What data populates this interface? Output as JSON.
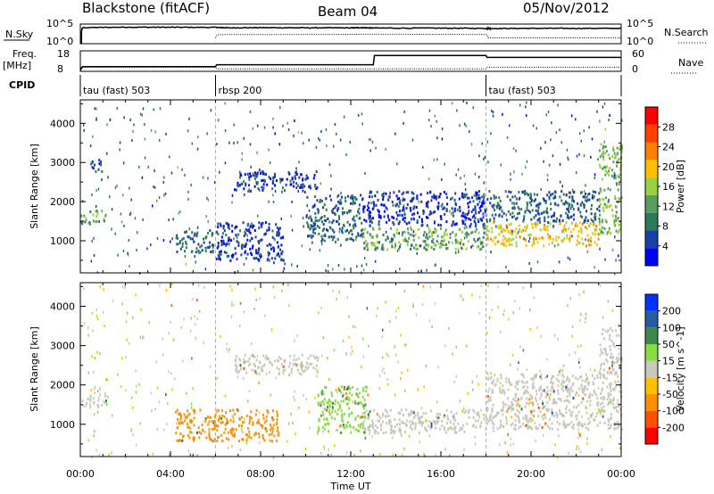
{
  "header": {
    "station": "Blackstone (fitACF)",
    "beam": "Beam 04",
    "date": "05/Nov/2012"
  },
  "side_labels": {
    "nsky": "N.Sky",
    "nsky_top": "10^5",
    "nsky_bottom": "10^0",
    "freq_line1": "Freq.",
    "freq_line2": "[MHz]",
    "freq_top": "18",
    "freq_bottom": "8",
    "cpid": "CPID",
    "nsearch": "N.Search",
    "nsearch_top": "10^5",
    "nsearch_bottom": "10^0",
    "nave": "Nave",
    "nave_top": "60",
    "nave_bottom": "0"
  },
  "colors": {
    "power": [
      "#0000ff",
      "#1b3fa8",
      "#2b7a5a",
      "#55a060",
      "#9dd040",
      "#ffc000",
      "#ff8000",
      "#ff4000",
      "#ff0000"
    ],
    "velocity": [
      "#0033ff",
      "#2a5aa0",
      "#3c8a4a",
      "#88dd44",
      "#c8c8c0",
      "#ffc000",
      "#ff9000",
      "#ff5000",
      "#ff0000"
    ]
  },
  "chart_data": [
    {
      "type": "line",
      "name": "N.Sky / N.Search",
      "xlim": [
        0,
        24
      ],
      "y_scale": "log",
      "ylim": [
        1,
        100000
      ],
      "series": [
        {
          "name": "N.Sky",
          "style": "solid",
          "x": [
            0.05,
            0.1,
            2,
            4,
            6,
            6.5,
            8,
            10,
            12,
            12.5,
            13,
            16,
            18,
            18.2,
            20,
            22,
            24
          ],
          "y": [
            1,
            12000,
            16000,
            15000,
            14000,
            11000,
            12000,
            11000,
            10500,
            12000,
            9500,
            9000,
            8000,
            7500,
            8000,
            8000,
            8000
          ]
        },
        {
          "name": "N.Search",
          "style": "dotted",
          "x": [
            6,
            6.1,
            8,
            10,
            12,
            13,
            16,
            18,
            18.1,
            20,
            24
          ],
          "y": [
            30,
            200,
            220,
            230,
            240,
            260,
            240,
            230,
            30,
            30,
            30
          ]
        }
      ]
    },
    {
      "type": "line",
      "name": "Freq / Nave",
      "xlim": [
        0,
        24
      ],
      "y_left": {
        "label": "Freq. [MHz]",
        "ticks": [
          8,
          18
        ]
      },
      "y_right": {
        "label": "Nave",
        "ticks": [
          0,
          60
        ]
      },
      "series": [
        {
          "name": "Freq.",
          "style": "solid",
          "x": [
            0,
            0.1,
            6,
            6.05,
            13,
            13.05,
            18,
            18.05,
            24
          ],
          "y": [
            8.5,
            10.3,
            10.3,
            11.2,
            11.2,
            15.7,
            15.7,
            14.8,
            14.8
          ]
        },
        {
          "name": "Nave",
          "style": "dotted",
          "x": [
            0,
            6,
            6.05,
            13,
            13.05,
            18,
            18.05,
            24
          ],
          "y": [
            12,
            12,
            7,
            7,
            7,
            7,
            12,
            12
          ]
        }
      ]
    },
    {
      "type": "table",
      "name": "CPID",
      "segments": [
        {
          "start": 0,
          "end": 6,
          "label": "tau (fast) 503"
        },
        {
          "start": 6,
          "end": 18,
          "label": "rbsp 200"
        },
        {
          "start": 18,
          "end": 24,
          "label": "tau (fast) 503"
        }
      ]
    },
    {
      "type": "heatmap",
      "name": "Power",
      "ylabel": "Slant Range [km]",
      "xlim": [
        0,
        24
      ],
      "ylim": [
        180,
        4600
      ],
      "yticks": [
        1000,
        2000,
        3000,
        4000
      ],
      "colorbar": {
        "label": "Power [dB]",
        "min": 0,
        "max": 32,
        "ticks": [
          4,
          8,
          12,
          16,
          20,
          24,
          28
        ]
      },
      "regions": [
        {
          "t0": 0.0,
          "t1": 1.2,
          "r0": 1450,
          "r1": 1800,
          "level": 14
        },
        {
          "t0": 0.3,
          "t1": 1.0,
          "r0": 2800,
          "r1": 3100,
          "level": 6
        },
        {
          "t0": 4.2,
          "t1": 5.9,
          "r0": 700,
          "r1": 1300,
          "level": 8
        },
        {
          "t0": 6.0,
          "t1": 9.0,
          "r0": 500,
          "r1": 1500,
          "level": 5
        },
        {
          "t0": 6.8,
          "t1": 10.5,
          "r0": 2300,
          "r1": 2800,
          "level": 5
        },
        {
          "t0": 10.0,
          "t1": 12.5,
          "r0": 1000,
          "r1": 2200,
          "level": 8
        },
        {
          "t0": 12.5,
          "t1": 18.0,
          "r0": 800,
          "r1": 1400,
          "level": 14
        },
        {
          "t0": 12.5,
          "t1": 18.0,
          "r0": 1400,
          "r1": 2300,
          "level": 5
        },
        {
          "t0": 18.0,
          "t1": 23.0,
          "r0": 900,
          "r1": 1500,
          "level": 22
        },
        {
          "t0": 18.0,
          "t1": 23.0,
          "r0": 1500,
          "r1": 2300,
          "level": 8
        },
        {
          "t0": 23.0,
          "t1": 24.0,
          "r0": 1200,
          "r1": 3500,
          "level": 16
        }
      ]
    },
    {
      "type": "heatmap",
      "name": "Velocity",
      "ylabel": "Slant Range [km]",
      "xlabel": "Time UT",
      "xlim": [
        0,
        24
      ],
      "ylim": [
        180,
        4600
      ],
      "xticks": [
        "00:00",
        "04:00",
        "08:00",
        "12:00",
        "16:00",
        "20:00",
        "00:00"
      ],
      "yticks": [
        1000,
        2000,
        3000,
        4000
      ],
      "colorbar": {
        "label": "Velocity [m s^-1]",
        "ticks": [
          200,
          100,
          50,
          15,
          -15,
          -50,
          -100,
          -200
        ]
      },
      "regions": [
        {
          "t0": 0.0,
          "t1": 1.2,
          "r0": 1450,
          "r1": 1800,
          "value": 0
        },
        {
          "t0": 4.2,
          "t1": 8.8,
          "r0": 600,
          "r1": 1400,
          "value": -80
        },
        {
          "t0": 6.8,
          "t1": 10.5,
          "r0": 2300,
          "r1": 2800,
          "value": 0
        },
        {
          "t0": 10.5,
          "t1": 12.8,
          "r0": 800,
          "r1": 2000,
          "value": 40
        },
        {
          "t0": 12.5,
          "t1": 18.0,
          "r0": 800,
          "r1": 1400,
          "value": 0
        },
        {
          "t0": 18.0,
          "t1": 24.0,
          "r0": 900,
          "r1": 1700,
          "value": 0
        },
        {
          "t0": 18.0,
          "t1": 23.0,
          "r0": 1700,
          "r1": 2300,
          "value": 0
        },
        {
          "t0": 23.0,
          "t1": 24.0,
          "r0": 1700,
          "r1": 3500,
          "value": 0
        }
      ]
    }
  ]
}
